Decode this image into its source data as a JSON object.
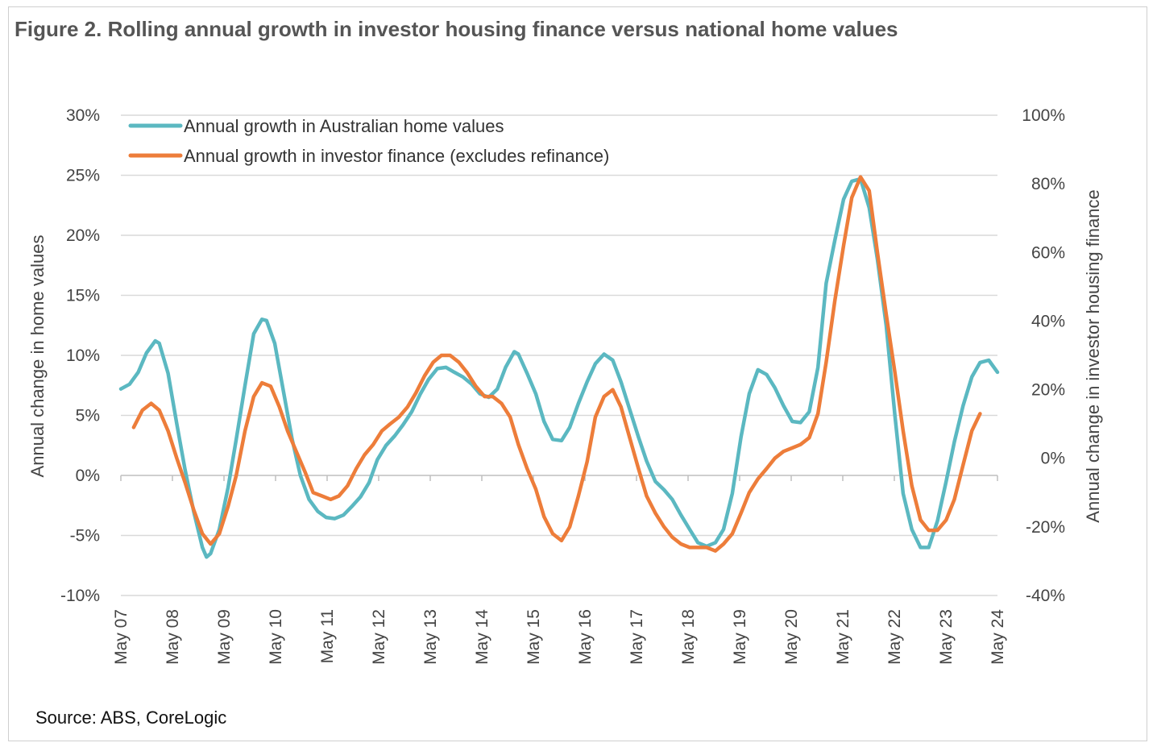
{
  "title": "Figure 2. Rolling annual growth in investor housing finance versus national home values",
  "source": "Source: ABS, CoreLogic",
  "colors": {
    "home_values": "#5BB8C1",
    "investor_finance": "#ED7D3A",
    "grid": "#d9d9d9"
  },
  "chart_data": {
    "type": "line",
    "x_ticks": [
      "May 07",
      "May 08",
      "May 09",
      "May 10",
      "May 11",
      "May 12",
      "May 13",
      "May 14",
      "May 15",
      "May 16",
      "May 17",
      "May 18",
      "May 19",
      "May 20",
      "May 21",
      "May 22",
      "May 23",
      "May 24"
    ],
    "y_left": {
      "label": "Annual change in home values",
      "range": [
        -10,
        30
      ],
      "ticks": [
        -10,
        -5,
        0,
        5,
        10,
        15,
        20,
        25,
        30
      ],
      "tick_labels": [
        "-10%",
        "-5%",
        "0%",
        "5%",
        "10%",
        "15%",
        "20%",
        "25%",
        "30%"
      ]
    },
    "y_right": {
      "label": "Annual change in investor housing finance",
      "range": [
        -40,
        100
      ],
      "ticks": [
        -40,
        -20,
        0,
        20,
        40,
        60,
        80,
        100
      ],
      "tick_labels": [
        "-40%",
        "-20%",
        "0%",
        "20%",
        "40%",
        "60%",
        "80%",
        "100%"
      ]
    },
    "legend": {
      "placement": "top-left"
    },
    "grid": "horizontal",
    "series": [
      {
        "name": "Annual growth in Australian home values",
        "axis": "left",
        "points": [
          [
            2007.33,
            7.2
          ],
          [
            2007.5,
            7.6
          ],
          [
            2007.67,
            8.6
          ],
          [
            2007.83,
            10.2
          ],
          [
            2008.0,
            11.2
          ],
          [
            2008.08,
            11.0
          ],
          [
            2008.25,
            8.5
          ],
          [
            2008.42,
            4.3
          ],
          [
            2008.58,
            0.5
          ],
          [
            2008.75,
            -3.0
          ],
          [
            2008.92,
            -6.0
          ],
          [
            2009.0,
            -6.8
          ],
          [
            2009.08,
            -6.5
          ],
          [
            2009.25,
            -4.5
          ],
          [
            2009.42,
            -1.0
          ],
          [
            2009.58,
            3.0
          ],
          [
            2009.75,
            7.5
          ],
          [
            2009.92,
            11.8
          ],
          [
            2010.08,
            13.0
          ],
          [
            2010.17,
            12.9
          ],
          [
            2010.33,
            11.0
          ],
          [
            2010.5,
            7.0
          ],
          [
            2010.67,
            3.0
          ],
          [
            2010.83,
            0.0
          ],
          [
            2011.0,
            -2.0
          ],
          [
            2011.17,
            -3.0
          ],
          [
            2011.33,
            -3.5
          ],
          [
            2011.5,
            -3.6
          ],
          [
            2011.67,
            -3.3
          ],
          [
            2011.83,
            -2.6
          ],
          [
            2012.0,
            -1.8
          ],
          [
            2012.17,
            -0.6
          ],
          [
            2012.33,
            1.3
          ],
          [
            2012.5,
            2.5
          ],
          [
            2012.67,
            3.3
          ],
          [
            2012.83,
            4.2
          ],
          [
            2013.0,
            5.3
          ],
          [
            2013.17,
            6.8
          ],
          [
            2013.33,
            8.0
          ],
          [
            2013.5,
            8.9
          ],
          [
            2013.67,
            9.0
          ],
          [
            2013.83,
            8.6
          ],
          [
            2014.0,
            8.2
          ],
          [
            2014.17,
            7.6
          ],
          [
            2014.33,
            6.8
          ],
          [
            2014.5,
            6.5
          ],
          [
            2014.67,
            7.2
          ],
          [
            2014.83,
            9.0
          ],
          [
            2015.0,
            10.3
          ],
          [
            2015.08,
            10.1
          ],
          [
            2015.25,
            8.5
          ],
          [
            2015.42,
            6.8
          ],
          [
            2015.58,
            4.5
          ],
          [
            2015.75,
            3.0
          ],
          [
            2015.92,
            2.9
          ],
          [
            2016.08,
            4.0
          ],
          [
            2016.25,
            6.0
          ],
          [
            2016.42,
            7.8
          ],
          [
            2016.58,
            9.3
          ],
          [
            2016.75,
            10.1
          ],
          [
            2016.92,
            9.6
          ],
          [
            2017.08,
            7.8
          ],
          [
            2017.25,
            5.5
          ],
          [
            2017.42,
            3.2
          ],
          [
            2017.58,
            1.2
          ],
          [
            2017.75,
            -0.5
          ],
          [
            2017.92,
            -1.2
          ],
          [
            2018.08,
            -2.0
          ],
          [
            2018.25,
            -3.3
          ],
          [
            2018.42,
            -4.5
          ],
          [
            2018.58,
            -5.6
          ],
          [
            2018.75,
            -5.9
          ],
          [
            2018.92,
            -5.6
          ],
          [
            2019.08,
            -4.5
          ],
          [
            2019.25,
            -1.5
          ],
          [
            2019.42,
            3.2
          ],
          [
            2019.58,
            6.8
          ],
          [
            2019.75,
            8.8
          ],
          [
            2019.92,
            8.4
          ],
          [
            2020.08,
            7.3
          ],
          [
            2020.25,
            5.8
          ],
          [
            2020.42,
            4.5
          ],
          [
            2020.58,
            4.4
          ],
          [
            2020.75,
            5.3
          ],
          [
            2020.92,
            9.0
          ],
          [
            2021.08,
            16.0
          ],
          [
            2021.25,
            19.6
          ],
          [
            2021.42,
            23.0
          ],
          [
            2021.58,
            24.5
          ],
          [
            2021.75,
            24.7
          ],
          [
            2021.92,
            22.3
          ],
          [
            2022.08,
            18.0
          ],
          [
            2022.25,
            12.5
          ],
          [
            2022.42,
            5.0
          ],
          [
            2022.58,
            -1.5
          ],
          [
            2022.75,
            -4.5
          ],
          [
            2022.92,
            -6.0
          ],
          [
            2023.08,
            -6.0
          ],
          [
            2023.25,
            -3.8
          ],
          [
            2023.42,
            -0.5
          ],
          [
            2023.58,
            2.8
          ],
          [
            2023.75,
            5.8
          ],
          [
            2023.92,
            8.2
          ],
          [
            2024.08,
            9.4
          ],
          [
            2024.25,
            9.6
          ],
          [
            2024.42,
            8.6
          ]
        ]
      },
      {
        "name": "Annual growth in investor finance (excludes refinance)",
        "axis": "right",
        "points": [
          [
            2007.58,
            9
          ],
          [
            2007.75,
            14
          ],
          [
            2007.92,
            16
          ],
          [
            2008.08,
            14
          ],
          [
            2008.25,
            8
          ],
          [
            2008.42,
            0
          ],
          [
            2008.58,
            -7
          ],
          [
            2008.75,
            -15
          ],
          [
            2008.92,
            -22
          ],
          [
            2009.08,
            -25
          ],
          [
            2009.25,
            -22
          ],
          [
            2009.42,
            -14
          ],
          [
            2009.58,
            -5
          ],
          [
            2009.75,
            8
          ],
          [
            2009.92,
            18
          ],
          [
            2010.08,
            22
          ],
          [
            2010.25,
            21
          ],
          [
            2010.42,
            15
          ],
          [
            2010.58,
            8
          ],
          [
            2010.75,
            2
          ],
          [
            2010.92,
            -4
          ],
          [
            2011.08,
            -10
          ],
          [
            2011.25,
            -11
          ],
          [
            2011.42,
            -12
          ],
          [
            2011.58,
            -11
          ],
          [
            2011.75,
            -8
          ],
          [
            2011.92,
            -3
          ],
          [
            2012.08,
            1
          ],
          [
            2012.25,
            4
          ],
          [
            2012.42,
            8
          ],
          [
            2012.58,
            10
          ],
          [
            2012.75,
            12
          ],
          [
            2012.92,
            15
          ],
          [
            2013.08,
            19
          ],
          [
            2013.25,
            24
          ],
          [
            2013.42,
            28
          ],
          [
            2013.58,
            30
          ],
          [
            2013.75,
            30
          ],
          [
            2013.92,
            28
          ],
          [
            2014.08,
            25
          ],
          [
            2014.25,
            21
          ],
          [
            2014.42,
            18
          ],
          [
            2014.58,
            18
          ],
          [
            2014.75,
            16
          ],
          [
            2014.92,
            12
          ],
          [
            2015.08,
            4
          ],
          [
            2015.25,
            -3
          ],
          [
            2015.42,
            -9
          ],
          [
            2015.58,
            -17
          ],
          [
            2015.75,
            -22
          ],
          [
            2015.92,
            -24
          ],
          [
            2016.08,
            -20
          ],
          [
            2016.25,
            -11
          ],
          [
            2016.42,
            -1
          ],
          [
            2016.58,
            12
          ],
          [
            2016.75,
            18
          ],
          [
            2016.92,
            20
          ],
          [
            2017.08,
            15
          ],
          [
            2017.25,
            6
          ],
          [
            2017.42,
            -3
          ],
          [
            2017.58,
            -11
          ],
          [
            2017.75,
            -16
          ],
          [
            2017.92,
            -20
          ],
          [
            2018.08,
            -23
          ],
          [
            2018.25,
            -25
          ],
          [
            2018.42,
            -26
          ],
          [
            2018.58,
            -26
          ],
          [
            2018.75,
            -26
          ],
          [
            2018.92,
            -27
          ],
          [
            2019.08,
            -25
          ],
          [
            2019.25,
            -22
          ],
          [
            2019.42,
            -16
          ],
          [
            2019.58,
            -10
          ],
          [
            2019.75,
            -6
          ],
          [
            2019.92,
            -3
          ],
          [
            2020.08,
            0
          ],
          [
            2020.25,
            2
          ],
          [
            2020.42,
            3
          ],
          [
            2020.58,
            4
          ],
          [
            2020.75,
            6
          ],
          [
            2020.92,
            13
          ],
          [
            2021.08,
            28
          ],
          [
            2021.25,
            46
          ],
          [
            2021.42,
            62
          ],
          [
            2021.58,
            76
          ],
          [
            2021.75,
            82
          ],
          [
            2021.92,
            78
          ],
          [
            2022.08,
            60
          ],
          [
            2022.25,
            42
          ],
          [
            2022.42,
            25
          ],
          [
            2022.58,
            8
          ],
          [
            2022.75,
            -8
          ],
          [
            2022.92,
            -18
          ],
          [
            2023.08,
            -21
          ],
          [
            2023.25,
            -21
          ],
          [
            2023.42,
            -18
          ],
          [
            2023.58,
            -12
          ],
          [
            2023.75,
            -2
          ],
          [
            2023.92,
            8
          ],
          [
            2024.08,
            13
          ]
        ]
      }
    ]
  }
}
